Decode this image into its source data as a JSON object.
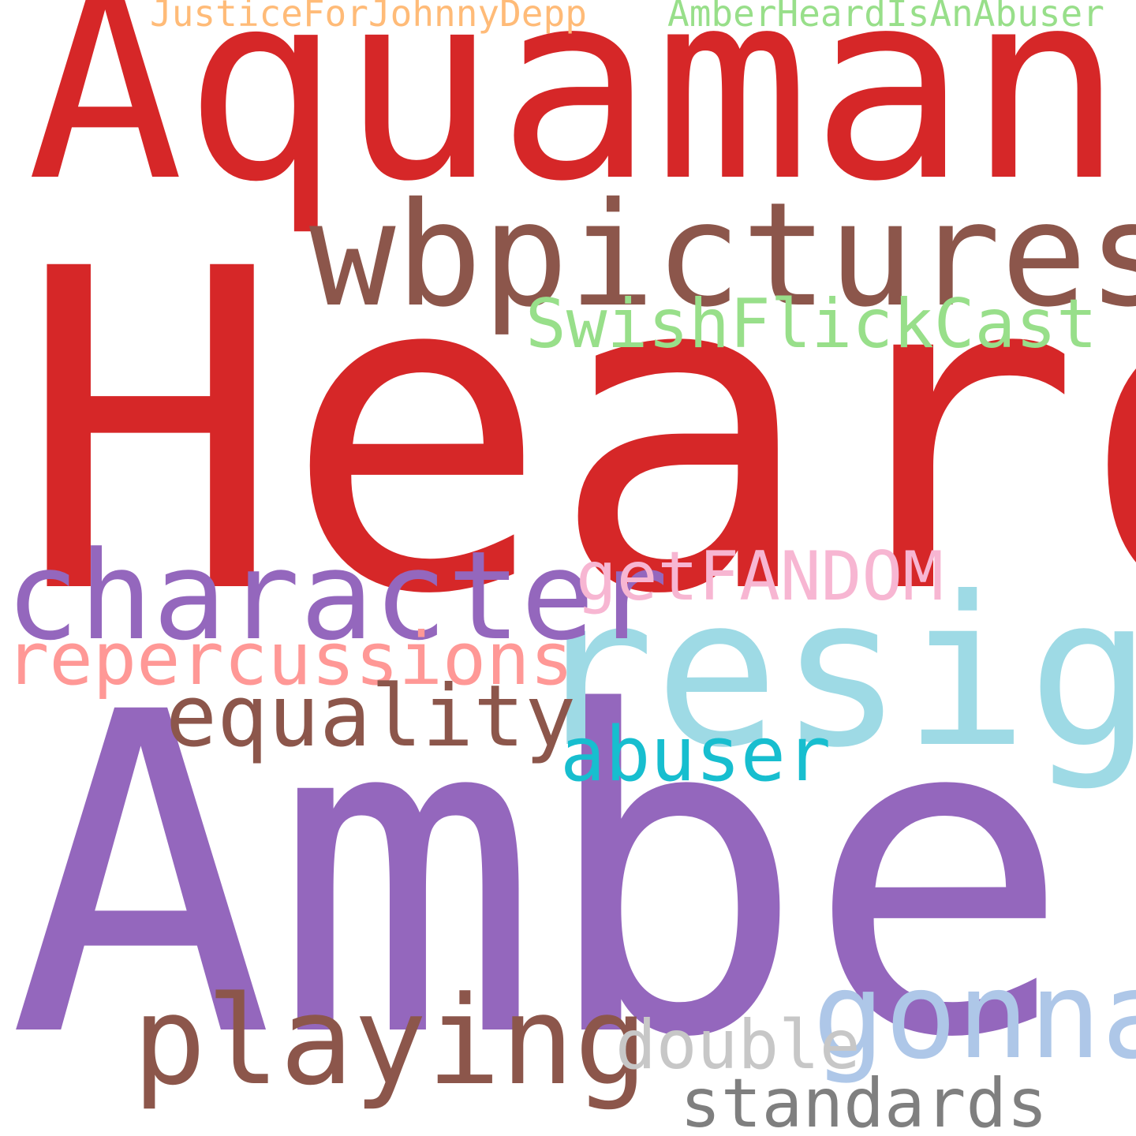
{
  "words": [
    {
      "id": "heard",
      "text": "Heard",
      "color": "#d62728"
    },
    {
      "id": "amber",
      "text": "Amber",
      "color": "#9467bd"
    },
    {
      "id": "aquaman",
      "text": "Aquaman",
      "color": "#d62728"
    },
    {
      "id": "resign",
      "text": "resign",
      "color": "#9edae5"
    },
    {
      "id": "wbpictures",
      "text": "wbpictures",
      "color": "#8c564b"
    },
    {
      "id": "character",
      "text": "character",
      "color": "#9467bd"
    },
    {
      "id": "gonna",
      "text": "gonna",
      "color": "#aec7e8"
    },
    {
      "id": "playing",
      "text": "playing",
      "color": "#8c564b"
    },
    {
      "id": "repercussions",
      "text": "repercussions",
      "color": "#ff9896"
    },
    {
      "id": "equality",
      "text": "equality",
      "color": "#8c564b"
    },
    {
      "id": "swishflickcast",
      "text": "SwishFlickCast",
      "color": "#98df8a"
    },
    {
      "id": "getfandom",
      "text": "getFANDOM",
      "color": "#f7b6d2"
    },
    {
      "id": "abuser",
      "text": "abuser",
      "color": "#17becf"
    },
    {
      "id": "double",
      "text": "double",
      "color": "#c7c7c7"
    },
    {
      "id": "standards",
      "text": "standards",
      "color": "#7f7f7f"
    },
    {
      "id": "justiceforjohnnydepp",
      "text": "JusticeForJohnnyDepp",
      "color": "#ffbb78"
    },
    {
      "id": "amberheardisanabuser",
      "text": "AmberHeardIsAnAbuser",
      "color": "#98df8a"
    }
  ]
}
